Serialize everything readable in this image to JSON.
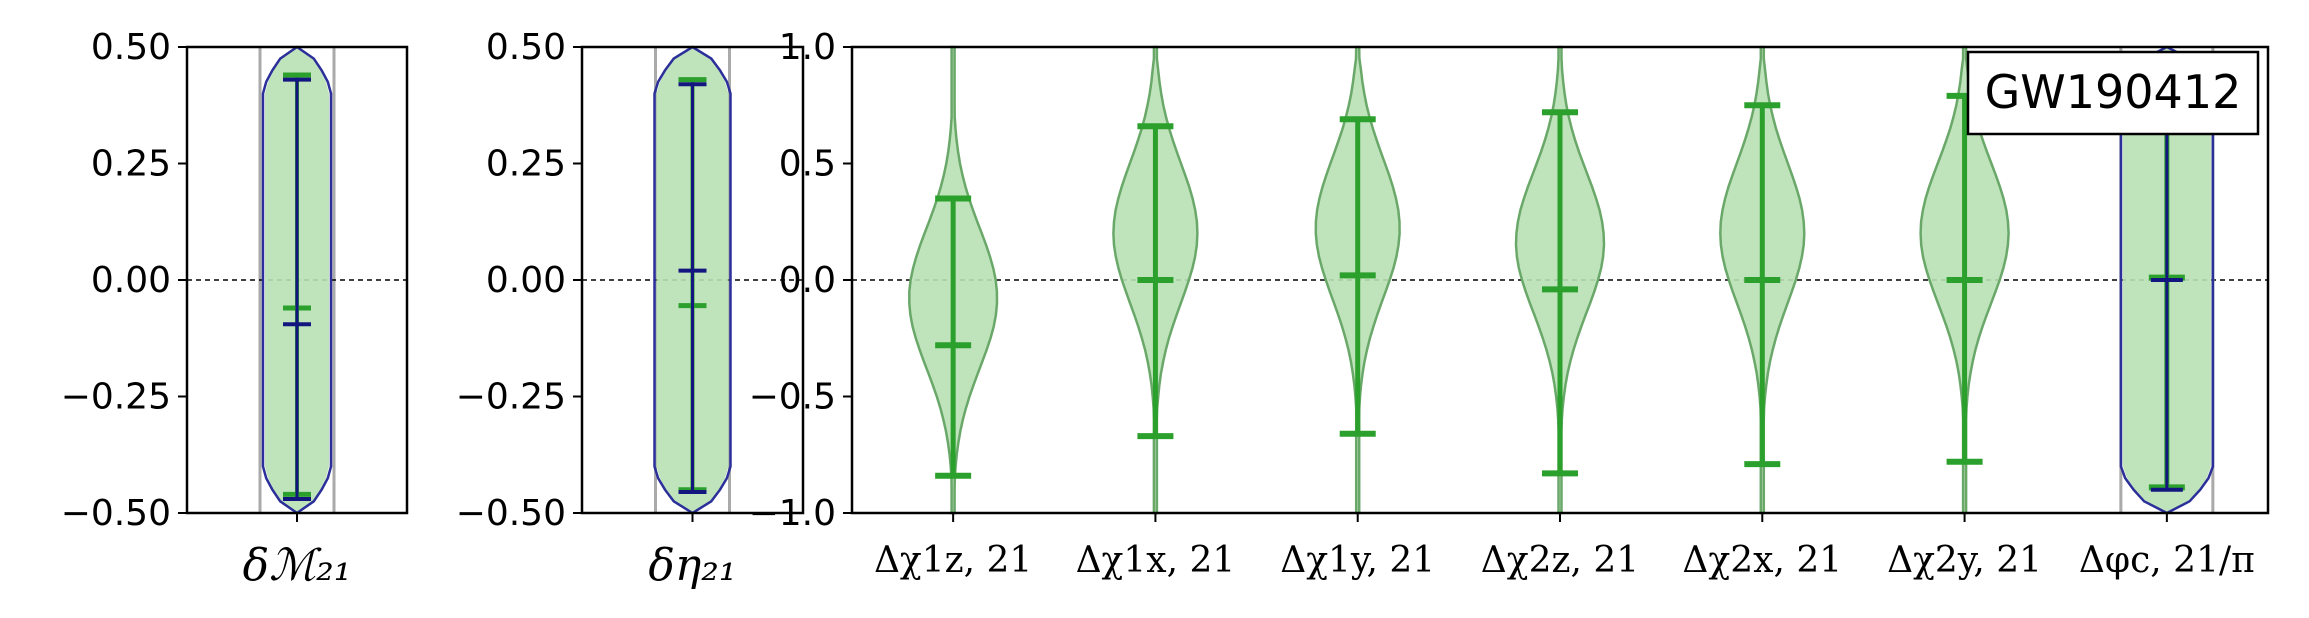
{
  "figure_label": "GW190412",
  "colors": {
    "green_fill": "#b8e0b4",
    "green_edge": "#6aa86a",
    "green_bar": "#2ca02c",
    "navy_bar": "#14167f",
    "navy_edge": "#2b2f9a",
    "zero_line": "#000000",
    "grey_band": "#aaaaaa"
  },
  "chart_data": [
    {
      "type": "violin",
      "xlabel": "δℳ₂₁",
      "ylim": [
        -0.5,
        0.5
      ],
      "yticks": [
        "0.50",
        "0.25",
        "0.00",
        "−0.25",
        "−0.50"
      ],
      "ytick_values": [
        0.5,
        0.25,
        0.0,
        -0.25,
        -0.5
      ],
      "green": {
        "upper": 0.44,
        "median": -0.06,
        "lower": -0.46
      },
      "navy": {
        "upper": 0.43,
        "median": -0.095,
        "lower": -0.47
      },
      "zero_line": 0.0
    },
    {
      "type": "violin",
      "xlabel": "δη₂₁",
      "ylim": [
        -0.5,
        0.5
      ],
      "yticks": [
        "0.50",
        "0.25",
        "0.00",
        "−0.25",
        "−0.50"
      ],
      "ytick_values": [
        0.5,
        0.25,
        0.0,
        -0.25,
        -0.5
      ],
      "green": {
        "upper": 0.43,
        "median": -0.055,
        "lower": -0.45
      },
      "navy": {
        "upper": 0.42,
        "median": 0.02,
        "lower": -0.455
      },
      "zero_line": 0.0
    },
    {
      "type": "violin",
      "ylim": [
        -1.0,
        1.0
      ],
      "yticks": [
        "1.0",
        "0.5",
        "0.0",
        "−0.5",
        "−1.0"
      ],
      "ytick_values": [
        1.0,
        0.5,
        0.0,
        -0.5,
        -1.0
      ],
      "categories": [
        "Δχ1z, 21",
        "Δχ1x, 21",
        "Δχ1y, 21",
        "Δχ2z, 21",
        "Δχ2x, 21",
        "Δχ2y, 21",
        "Δφc, 21/π"
      ],
      "green": [
        {
          "upper": 0.35,
          "median": -0.28,
          "lower": -0.84
        },
        {
          "upper": 0.66,
          "median": 0.0,
          "lower": -0.67
        },
        {
          "upper": 0.69,
          "median": 0.02,
          "lower": -0.66
        },
        {
          "upper": 0.72,
          "median": -0.04,
          "lower": -0.83
        },
        {
          "upper": 0.75,
          "median": 0.0,
          "lower": -0.79
        },
        {
          "upper": 0.79,
          "median": 0.0,
          "lower": -0.78
        },
        {
          "upper": 0.92,
          "median": 0.01,
          "lower": -0.89
        }
      ],
      "navy": {
        "index": 6,
        "upper": 0.9,
        "median": 0.0,
        "lower": -0.9
      },
      "zero_line": 0.0
    }
  ]
}
